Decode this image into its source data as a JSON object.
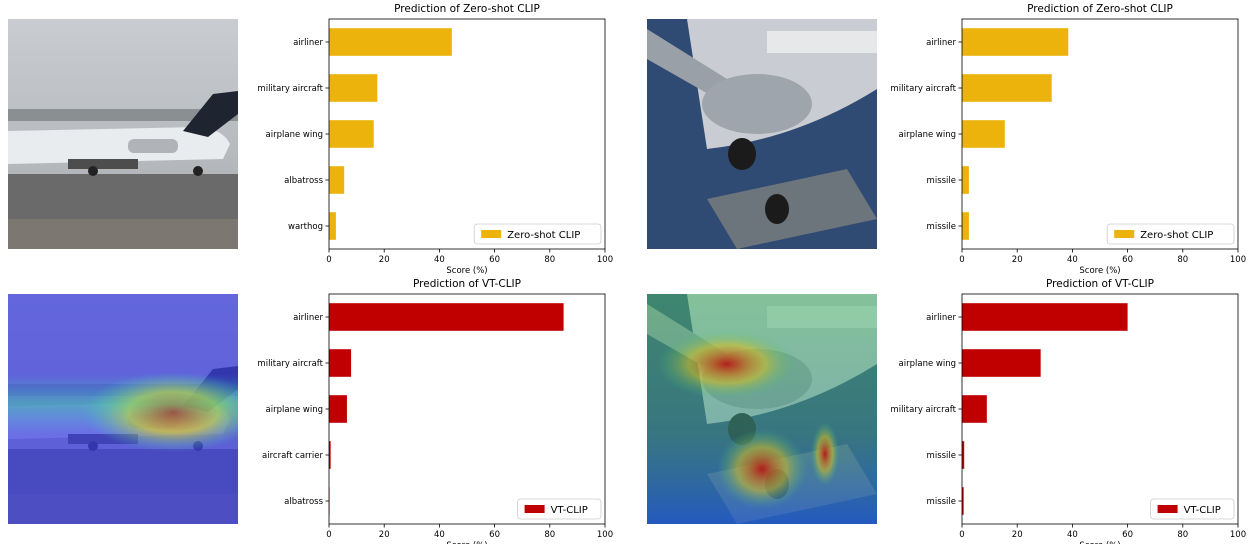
{
  "colors": {
    "zeroshot": "#EBB30C",
    "vtclip": "#C00000"
  },
  "images": [
    {
      "name": "airport-plane-photo",
      "overlay": "none",
      "description": "airport-plane-photo"
    },
    {
      "name": "plane-underside-photo",
      "overlay": "none",
      "description": "plane-underside-photo"
    },
    {
      "name": "airport-plane-heatmap",
      "overlay": "attention-heatmap",
      "description": "airport-plane-heatmap"
    },
    {
      "name": "plane-underside-heatmap",
      "overlay": "attention-heatmap",
      "description": "plane-underside-heatmap"
    }
  ],
  "chart_data": [
    {
      "type": "bar",
      "orientation": "horizontal",
      "title": "Prediction of Zero-shot CLIP",
      "xlabel": "Score (%)",
      "xlim": [
        0,
        100
      ],
      "xticks": [
        0,
        20,
        40,
        60,
        80,
        100
      ],
      "categories": [
        "airliner",
        "military aircraft",
        "airplane wing",
        "albatross",
        "warthog"
      ],
      "series": [
        {
          "name": "Zero-shot CLIP",
          "values": [
            44.5,
            17.5,
            16.2,
            5.5,
            2.5
          ]
        }
      ],
      "legend_position": "lower-right",
      "grid": false
    },
    {
      "type": "bar",
      "orientation": "horizontal",
      "title": "Prediction of Zero-shot CLIP",
      "xlabel": "Score (%)",
      "xlim": [
        0,
        100
      ],
      "xticks": [
        0,
        20,
        40,
        60,
        80,
        100
      ],
      "categories": [
        "airliner",
        "military aircraft",
        "airplane wing",
        "missile",
        "missile"
      ],
      "series": [
        {
          "name": "Zero-shot CLIP",
          "values": [
            38.5,
            32.5,
            15.5,
            2.5,
            2.5
          ]
        }
      ],
      "legend_position": "lower-right",
      "grid": false
    },
    {
      "type": "bar",
      "orientation": "horizontal",
      "title": "Prediction of VT-CLIP",
      "xlabel": "Score (%)",
      "xlim": [
        0,
        100
      ],
      "xticks": [
        0,
        20,
        40,
        60,
        80,
        100
      ],
      "categories": [
        "airliner",
        "military aircraft",
        "airplane wing",
        "aircraft carrier",
        "albatross"
      ],
      "series": [
        {
          "name": "VT-CLIP",
          "values": [
            85,
            8,
            6.5,
            0.6,
            0.2
          ]
        }
      ],
      "legend_position": "lower-right",
      "grid": false
    },
    {
      "type": "bar",
      "orientation": "horizontal",
      "title": "Prediction of VT-CLIP",
      "xlabel": "Score (%)",
      "xlim": [
        0,
        100
      ],
      "xticks": [
        0,
        20,
        40,
        60,
        80,
        100
      ],
      "categories": [
        "airliner",
        "airplane wing",
        "military aircraft",
        "missile",
        "missile"
      ],
      "series": [
        {
          "name": "VT-CLIP",
          "values": [
            60,
            28.5,
            9,
            0.8,
            0.6
          ]
        }
      ],
      "legend_position": "lower-right",
      "grid": false
    }
  ]
}
